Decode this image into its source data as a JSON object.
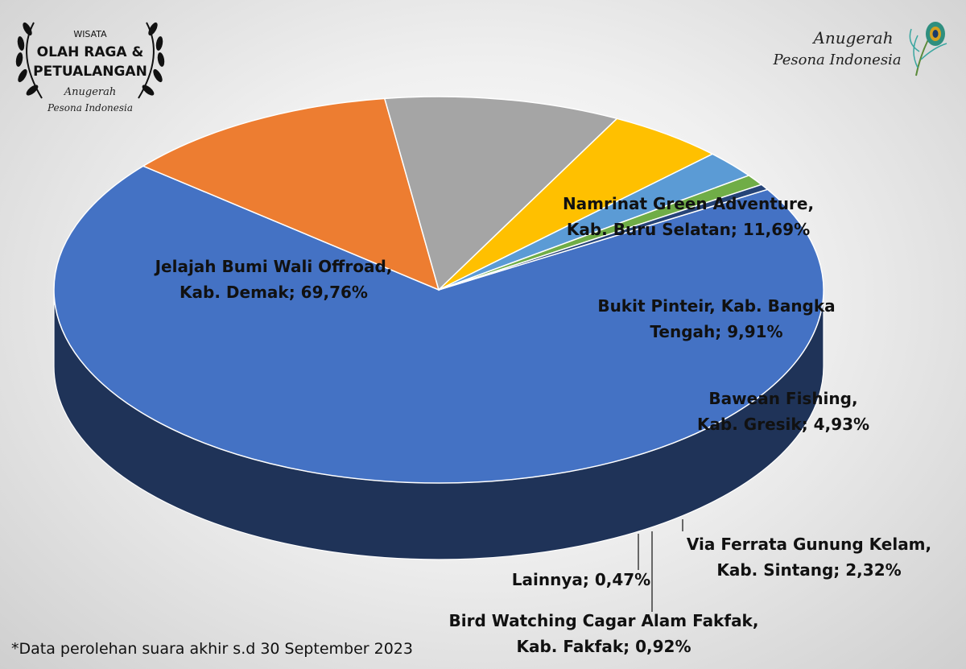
{
  "award_badge": {
    "line1": "WISATA",
    "line2": "OLAH RAGA &",
    "line3": "PETUALANGAN",
    "line4": "Anugerah",
    "line5": "Pesona Indonesia"
  },
  "brand_logo": {
    "line1": "Anugerah",
    "line2": "Pesona Indonesia"
  },
  "footnote": "*Data perolehan suara akhir s.d 30 September 2023",
  "chart_data": {
    "type": "pie",
    "title": "",
    "slices": [
      {
        "name": "Jelajah Bumi Wali Offroad, Kab. Demak",
        "value": 69.76,
        "color": "#4472C4",
        "label_lines": [
          "Jelajah Bumi Wali Offroad,",
          "Kab. Demak; 69,76%"
        ]
      },
      {
        "name": "Namrinat Green Adventure, Kab. Buru Selatan",
        "value": 11.69,
        "color": "#ED7D31",
        "label_lines": [
          "Namrinat Green Adventure,",
          "Kab. Buru Selatan; 11,69%"
        ]
      },
      {
        "name": "Bukit Pinteir, Kab. Bangka Tengah",
        "value": 9.91,
        "color": "#A5A5A5",
        "label_lines": [
          "Bukit Pinteir, Kab. Bangka",
          "Tengah; 9,91%"
        ]
      },
      {
        "name": "Bawean Fishing, Kab. Gresik",
        "value": 4.93,
        "color": "#FFC000",
        "label_lines": [
          "Bawean Fishing,",
          "Kab. Gresik; 4,93%"
        ]
      },
      {
        "name": "Via Ferrata Gunung Kelam, Kab. Sintang",
        "value": 2.32,
        "color": "#5B9BD5",
        "label_lines": [
          "Via Ferrata Gunung Kelam,",
          "Kab. Sintang; 2,32%"
        ]
      },
      {
        "name": "Bird Watching Cagar Alam Fakfak, Kab. Fakfak",
        "value": 0.92,
        "color": "#70AD47",
        "label_lines": [
          "Bird Watching Cagar Alam Fakfak,",
          "Kab. Fakfak; 0,92%"
        ]
      },
      {
        "name": "Lainnya",
        "value": 0.47,
        "color": "#264478",
        "label_lines": [
          "Lainnya; 0,47%"
        ]
      }
    ]
  }
}
